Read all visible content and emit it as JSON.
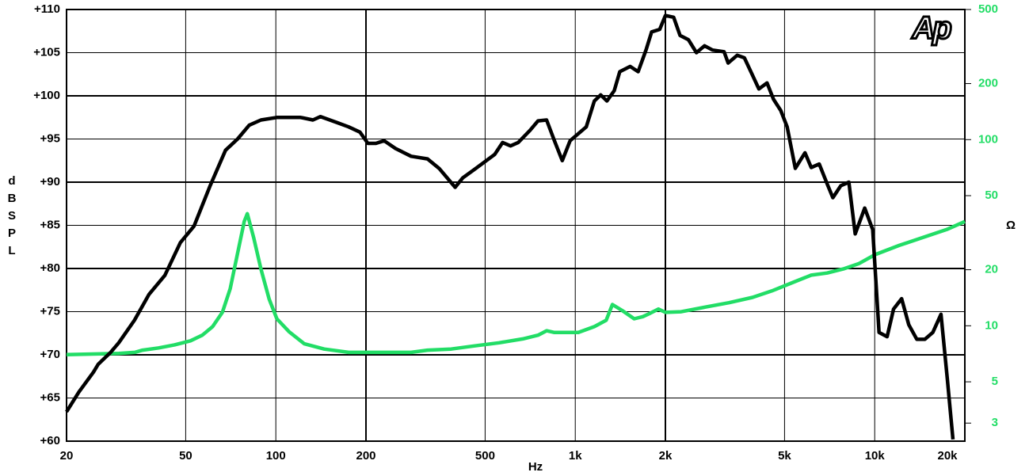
{
  "chart_data": {
    "type": "line",
    "logo": "Ap",
    "xlabel": "Hz",
    "ylabel": "dB SPL",
    "y2label": "Ω",
    "xscale": "log",
    "y2scale": "log",
    "grid": true,
    "xlim": [
      20,
      20000
    ],
    "ylim": [
      60,
      110
    ],
    "y2lim": [
      2.4,
      500
    ],
    "xticks": [
      20,
      50,
      100,
      200,
      500,
      {
        "value": 1000,
        "label": "1k"
      },
      {
        "value": 2000,
        "label": "2k"
      },
      {
        "value": 5000,
        "label": "5k"
      },
      {
        "value": 10000,
        "label": "10k"
      },
      {
        "value": 20000,
        "label": "20k"
      }
    ],
    "yticks": [
      {
        "value": 60,
        "label": "+60"
      },
      {
        "value": 65,
        "label": "+65"
      },
      {
        "value": 70,
        "label": "+70"
      },
      {
        "value": 75,
        "label": "+75"
      },
      {
        "value": 80,
        "label": "+80"
      },
      {
        "value": 85,
        "label": "+85"
      },
      {
        "value": 90,
        "label": "+90"
      },
      {
        "value": 95,
        "label": "+95"
      },
      {
        "value": 100,
        "label": "+100"
      },
      {
        "value": 105,
        "label": "+105"
      },
      {
        "value": 110,
        "label": "+110"
      }
    ],
    "y2ticks": [
      3,
      5,
      10,
      20,
      50,
      100,
      200,
      500
    ],
    "series": [
      {
        "color": "#000000",
        "x": [
          20,
          22,
          24.6,
          25.5,
          28.1,
          29.9,
          33.7,
          37.7,
          42.6,
          48,
          53.3,
          60.2,
          67.9,
          74.5,
          81.5,
          89.2,
          100.8,
          121,
          133,
          141,
          160,
          175,
          191,
          203,
          216,
          230,
          251,
          283,
          321,
          351,
          397,
          421,
          462,
          538,
          572,
          608,
          645,
          706,
          751,
          802,
          852,
          905,
          961,
          1088,
          1158,
          1216,
          1276,
          1349,
          1408,
          1525,
          1622,
          1723,
          1799,
          1914,
          2000,
          2131,
          2238,
          2386,
          2540,
          2703,
          2874,
          3141,
          3240,
          3473,
          3672,
          3906,
          4104,
          4370,
          4594,
          4856,
          5100,
          5430,
          5850,
          6140,
          6530,
          6940,
          7250,
          7710,
          8200,
          8610,
          9260,
          9850,
          10340,
          11000,
          11560,
          12300,
          12990,
          13830,
          14700,
          15640,
          16650,
          17480,
          18250
        ],
        "values": [
          63.4,
          65.7,
          68,
          68.9,
          70.3,
          71.4,
          74,
          77,
          79.2,
          83,
          84.9,
          89.5,
          93.7,
          95,
          96.6,
          97.2,
          97.5,
          97.5,
          97.2,
          97.6,
          96.9,
          96.4,
          95.8,
          94.5,
          94.5,
          94.8,
          93.9,
          93,
          92.7,
          91.6,
          89.4,
          90.5,
          91.5,
          93.2,
          94.6,
          94.2,
          94.6,
          96,
          97.1,
          97.2,
          94.8,
          92.5,
          94.8,
          96.4,
          99.4,
          100.1,
          99.4,
          100.6,
          102.8,
          103.4,
          102.8,
          105.3,
          107.4,
          107.7,
          109.3,
          109.1,
          107,
          106.5,
          105,
          105.8,
          105.3,
          105.1,
          103.8,
          104.7,
          104.4,
          102.4,
          100.8,
          101.5,
          99.6,
          98.3,
          96.4,
          91.6,
          93.4,
          91.7,
          92.1,
          89.8,
          88.2,
          89.6,
          90,
          84,
          87,
          84.5,
          72.6,
          72.1,
          75.3,
          76.5,
          73.5,
          71.8,
          71.8,
          72.6,
          74.7,
          67.2,
          60.2
        ]
      },
      {
        "color": "#22dd66",
        "axis": "y2",
        "x": [
          20,
          29.9,
          33.8,
          35.9,
          40.6,
          45.9,
          51.9,
          56.8,
          61.5,
          66.3,
          70.4,
          74.5,
          78.4,
          80.3,
          84.3,
          89.2,
          95,
          100.8,
          110.6,
          124.5,
          145,
          175,
          251,
          283,
          321,
          385,
          462,
          557,
          668,
          751,
          802,
          852,
          1024,
          1158,
          1268,
          1331,
          1432,
          1573,
          1681,
          1784,
          1895,
          2000,
          2258,
          2720,
          3262,
          3907,
          4536,
          5430,
          6140,
          6940,
          7850,
          8870,
          10030,
          12060,
          14470,
          17400,
          20000
        ],
        "values": [
          7,
          7.1,
          7.2,
          7.4,
          7.6,
          7.9,
          8.3,
          8.9,
          9.9,
          11.8,
          15.8,
          24.5,
          36.3,
          40,
          29.8,
          20.2,
          13.9,
          10.9,
          9.3,
          8,
          7.5,
          7.2,
          7.2,
          7.2,
          7.4,
          7.5,
          7.8,
          8.1,
          8.5,
          8.9,
          9.4,
          9.2,
          9.2,
          9.9,
          10.7,
          13,
          12.1,
          10.9,
          11.2,
          11.7,
          12.3,
          11.8,
          11.9,
          12.6,
          13.3,
          14.2,
          15.4,
          17.3,
          18.7,
          19.2,
          20.2,
          21.6,
          24.1,
          27,
          29.8,
          32.9,
          36.3
        ]
      }
    ]
  }
}
